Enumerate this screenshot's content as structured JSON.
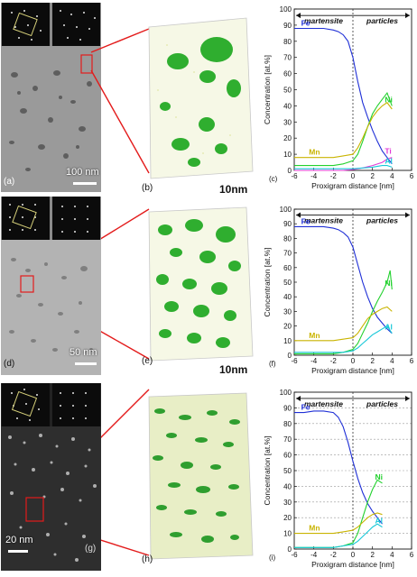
{
  "panels": {
    "row1": {
      "tem_letter": "(a)",
      "tem_scale": "100 nm",
      "recon_letter": "(b)",
      "recon_scale": "10nm",
      "chart_letter": "(c)"
    },
    "row2": {
      "tem_letter": "(d)",
      "tem_scale": "50 nm",
      "recon_letter": "(e)",
      "recon_scale": "10nm",
      "chart_letter": "(f)"
    },
    "row3": {
      "tem_letter": "(g)",
      "tem_scale": "20 nm",
      "recon_letter": "(h)",
      "recon_scale": "",
      "chart_letter": "(i)"
    }
  },
  "colors": {
    "Fe": "#1f2fd6",
    "Ni": "#22d12e",
    "Mn": "#c9b400",
    "Ti": "#e23ad6",
    "Al": "#18c8d8",
    "precipitate": "#2fae2f",
    "atoms": "#d8e08a",
    "connector": "#e31b1b"
  },
  "chart_data": [
    {
      "type": "line",
      "xlabel": "Proxigram distance [nm]",
      "ylabel": "Concentration [at.%]",
      "xlim": [
        -6,
        6
      ],
      "ylim": [
        0,
        100
      ],
      "xticks": [
        -6,
        -4,
        -2,
        0,
        2,
        4,
        6
      ],
      "yticks": [
        0,
        10,
        20,
        30,
        40,
        50,
        60,
        70,
        80,
        90,
        100
      ],
      "regions": {
        "left": "martensite",
        "right": "particles"
      },
      "grid": false,
      "series": [
        {
          "name": "Fe",
          "color": "#1f2fd6",
          "x": [
            -6,
            -4,
            -3,
            -2,
            -1.5,
            -1,
            -0.5,
            0,
            0.5,
            1,
            1.5,
            2,
            2.5,
            3,
            3.5,
            4
          ],
          "y": [
            88,
            88,
            88,
            87,
            86,
            84,
            80,
            70,
            55,
            42,
            33,
            25,
            18,
            12,
            8,
            4
          ]
        },
        {
          "name": "Ni",
          "color": "#22d12e",
          "x": [
            -6,
            -4,
            -2,
            -1,
            0,
            0.5,
            1,
            1.5,
            2,
            2.5,
            3,
            3.5,
            4
          ],
          "y": [
            3,
            3,
            3,
            4,
            6,
            10,
            18,
            27,
            35,
            40,
            44,
            48,
            40
          ]
        },
        {
          "name": "Mn",
          "color": "#c9b400",
          "x": [
            -6,
            -4,
            -2,
            -1,
            0,
            0.5,
            1,
            1.5,
            2,
            2.5,
            3,
            3.5,
            4
          ],
          "y": [
            8,
            8,
            8,
            9,
            10,
            14,
            20,
            27,
            33,
            37,
            40,
            42,
            38
          ]
        },
        {
          "name": "Ti",
          "color": "#e23ad6",
          "x": [
            -6,
            -4,
            -2,
            -1,
            0,
            1,
            2,
            3,
            3.5,
            4
          ],
          "y": [
            0,
            0,
            0,
            0,
            0.5,
            1.5,
            3,
            5,
            7,
            8
          ]
        },
        {
          "name": "Al",
          "color": "#18c8d8",
          "x": [
            -6,
            -4,
            -2,
            0,
            1,
            2,
            3,
            3.5,
            4
          ],
          "y": [
            1,
            1,
            1,
            1,
            1.5,
            2,
            3,
            3,
            2
          ]
        }
      ]
    },
    {
      "type": "line",
      "xlabel": "Proxigram distance [nm]",
      "ylabel": "Concentration [at.%]",
      "xlim": [
        -6,
        6
      ],
      "ylim": [
        0,
        100
      ],
      "xticks": [
        -6,
        -4,
        -2,
        0,
        2,
        4,
        6
      ],
      "yticks": [
        0,
        10,
        20,
        30,
        40,
        50,
        60,
        70,
        80,
        90,
        100
      ],
      "regions": {
        "left": "martensite",
        "right": "particles"
      },
      "grid": false,
      "series": [
        {
          "name": "Fe",
          "color": "#1f2fd6",
          "x": [
            -6,
            -4,
            -3,
            -2,
            -1.5,
            -1,
            -0.5,
            0,
            0.5,
            1,
            1.5,
            2,
            2.5,
            3,
            3.5,
            4
          ],
          "y": [
            88,
            88,
            88,
            87,
            86,
            84,
            81,
            74,
            62,
            50,
            40,
            32,
            26,
            22,
            18,
            15
          ]
        },
        {
          "name": "Ni",
          "color": "#22d12e",
          "x": [
            -6,
            -4,
            -2,
            -1,
            0,
            0.5,
            1,
            1.5,
            2,
            2.5,
            3,
            3.5,
            3.8,
            4
          ],
          "y": [
            1,
            1,
            1,
            2,
            4,
            8,
            15,
            22,
            30,
            37,
            43,
            50,
            58,
            45
          ]
        },
        {
          "name": "Mn",
          "color": "#c9b400",
          "x": [
            -6,
            -4,
            -2,
            -1,
            0,
            0.5,
            1,
            1.5,
            2,
            2.5,
            3,
            3.5,
            4
          ],
          "y": [
            10,
            10,
            10,
            11,
            12,
            15,
            20,
            25,
            28,
            30,
            32,
            33,
            30
          ]
        },
        {
          "name": "Al",
          "color": "#18c8d8",
          "x": [
            -6,
            -4,
            -2,
            -1,
            0,
            0.5,
            1,
            1.5,
            2,
            2.5,
            3,
            3.5,
            4
          ],
          "y": [
            2,
            2,
            2,
            2,
            3,
            5,
            8,
            11,
            14,
            16,
            18,
            20,
            15
          ]
        }
      ]
    },
    {
      "type": "line",
      "xlabel": "Proxigram distance [nm]",
      "ylabel": "Concentration [at.%]",
      "xlim": [
        -6,
        6
      ],
      "ylim": [
        0,
        100
      ],
      "xticks": [
        -6,
        -4,
        -2,
        0,
        2,
        4,
        6
      ],
      "yticks": [
        0,
        10,
        20,
        30,
        40,
        50,
        60,
        70,
        80,
        90,
        100
      ],
      "regions": {
        "left": "martensite",
        "right": "particles"
      },
      "grid": true,
      "series": [
        {
          "name": "Fe",
          "color": "#1f2fd6",
          "x": [
            -6,
            -5,
            -4,
            -3,
            -2,
            -1.5,
            -1,
            -0.5,
            0,
            0.5,
            1,
            1.5,
            2,
            2.5,
            3
          ],
          "y": [
            87,
            87,
            88,
            88,
            87,
            84,
            78,
            68,
            56,
            45,
            36,
            29,
            24,
            20,
            16
          ]
        },
        {
          "name": "Ni",
          "color": "#22d12e",
          "x": [
            -6,
            -4,
            -2,
            -1,
            0,
            0.5,
            1,
            1.5,
            2,
            2.5,
            3
          ],
          "y": [
            1,
            1,
            1,
            2,
            4,
            10,
            20,
            30,
            38,
            44,
            42
          ]
        },
        {
          "name": "Mn",
          "color": "#c9b400",
          "x": [
            -6,
            -4,
            -2,
            -1,
            0,
            0.5,
            1,
            1.5,
            2,
            2.5,
            3
          ],
          "y": [
            10,
            10,
            10,
            11,
            12,
            14,
            17,
            20,
            22,
            23,
            22
          ]
        },
        {
          "name": "Al",
          "color": "#18c8d8",
          "x": [
            -6,
            -4,
            -2,
            -1,
            0,
            0.5,
            1,
            1.5,
            2,
            2.5,
            3
          ],
          "y": [
            1,
            1,
            1,
            2,
            3,
            5,
            8,
            11,
            14,
            16,
            14
          ]
        }
      ]
    }
  ]
}
